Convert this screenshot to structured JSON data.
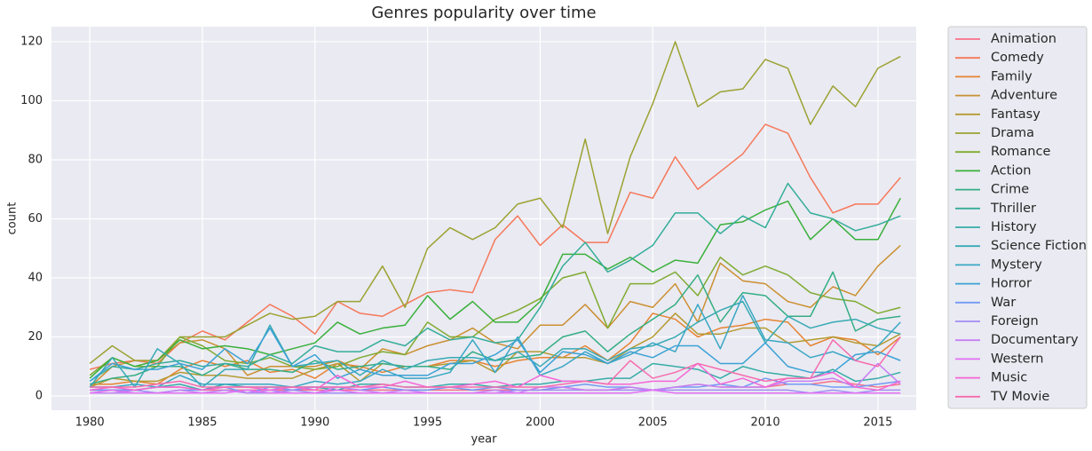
{
  "chart_data": {
    "type": "line",
    "title": "Genres popularity over time",
    "x_label": "year",
    "y_label": "count",
    "x": [
      1980,
      1981,
      1982,
      1983,
      1984,
      1985,
      1986,
      1987,
      1988,
      1989,
      1990,
      1991,
      1992,
      1993,
      1994,
      1995,
      1996,
      1997,
      1998,
      1999,
      2000,
      2001,
      2002,
      2003,
      2004,
      2005,
      2006,
      2007,
      2008,
      2009,
      2010,
      2011,
      2012,
      2013,
      2014,
      2015,
      2016
    ],
    "xlim": [
      1978.3,
      2016.7
    ],
    "xticks": [
      1980,
      1985,
      1990,
      1995,
      2000,
      2005,
      2010,
      2015
    ],
    "ylim": [
      -4.8,
      125.1
    ],
    "yticks": [
      0,
      20,
      40,
      60,
      80,
      100,
      120
    ],
    "grid": true,
    "legend": "right",
    "background": "#eaeaf2",
    "series": [
      {
        "name": "Animation",
        "color": "#f77189",
        "values": [
          2,
          2,
          2,
          3,
          3,
          2,
          2,
          2,
          2,
          2,
          2,
          2,
          2,
          2,
          2,
          2,
          2,
          2,
          2,
          2,
          2,
          3,
          2,
          2,
          3,
          2,
          3,
          4,
          3,
          3,
          3,
          4,
          4,
          5,
          4,
          3,
          4
        ]
      },
      {
        "name": "Comedy",
        "color": "#f5785a",
        "values": [
          9,
          11,
          12,
          11,
          18,
          22,
          19,
          25,
          31,
          27,
          21,
          32,
          28,
          27,
          31,
          35,
          36,
          35,
          53,
          61,
          51,
          58,
          52,
          52,
          69,
          67,
          81,
          70,
          76,
          82,
          92,
          89,
          74,
          62,
          65,
          65,
          74
        ]
      },
      {
        "name": "Family",
        "color": "#e68332",
        "values": [
          4,
          4,
          5,
          4,
          9,
          12,
          10,
          12,
          8,
          9,
          6,
          11,
          10,
          8,
          10,
          10,
          12,
          12,
          10,
          12,
          13,
          13,
          17,
          12,
          18,
          28,
          26,
          20,
          23,
          24,
          26,
          25,
          17,
          20,
          19,
          14,
          20
        ]
      },
      {
        "name": "Adventure",
        "color": "#cb9032",
        "values": [
          3,
          10,
          12,
          12,
          18,
          19,
          16,
          7,
          10,
          10,
          10,
          12,
          9,
          16,
          14,
          17,
          19,
          23,
          18,
          16,
          24,
          24,
          31,
          23,
          32,
          30,
          38,
          25,
          45,
          39,
          38,
          32,
          30,
          37,
          34,
          44,
          51
        ]
      },
      {
        "name": "Fantasy",
        "color": "#b59a32",
        "values": [
          3,
          6,
          5,
          5,
          8,
          7,
          7,
          6,
          6,
          6,
          9,
          11,
          5,
          11,
          10,
          10,
          11,
          12,
          8,
          15,
          15,
          13,
          13,
          11,
          16,
          20,
          28,
          21,
          21,
          23,
          23,
          18,
          19,
          20,
          18,
          17,
          21
        ]
      },
      {
        "name": "Drama",
        "color": "#9ba231",
        "values": [
          11,
          17,
          12,
          12,
          20,
          20,
          20,
          24,
          28,
          26,
          27,
          32,
          32,
          44,
          30,
          50,
          57,
          53,
          57,
          65,
          67,
          57,
          87,
          55,
          81,
          99,
          120,
          98,
          103,
          104,
          114,
          111,
          92,
          105,
          98,
          111,
          115
        ]
      },
      {
        "name": "Romance",
        "color": "#7fab31",
        "values": [
          7,
          13,
          10,
          10,
          20,
          17,
          12,
          11,
          13,
          10,
          9,
          10,
          13,
          15,
          14,
          25,
          20,
          20,
          26,
          29,
          33,
          40,
          42,
          23,
          38,
          38,
          42,
          34,
          47,
          41,
          44,
          41,
          35,
          33,
          32,
          28,
          30
        ]
      },
      {
        "name": "Action",
        "color": "#39b03c",
        "values": [
          6,
          13,
          10,
          12,
          19,
          16,
          17,
          16,
          14,
          16,
          18,
          25,
          21,
          23,
          24,
          34,
          26,
          32,
          25,
          25,
          32,
          48,
          48,
          43,
          47,
          42,
          46,
          45,
          58,
          59,
          63,
          66,
          53,
          60,
          53,
          53,
          67
        ]
      },
      {
        "name": "Crime",
        "color": "#34ae84",
        "values": [
          4,
          6,
          7,
          10,
          10,
          7,
          11,
          9,
          9,
          8,
          12,
          9,
          10,
          11,
          10,
          10,
          9,
          15,
          12,
          13,
          14,
          20,
          22,
          15,
          21,
          26,
          31,
          41,
          25,
          35,
          34,
          27,
          27,
          42,
          22,
          26,
          27
        ]
      },
      {
        "name": "Thriller",
        "color": "#35ad9a",
        "values": [
          5,
          10,
          9,
          11,
          12,
          10,
          11,
          10,
          14,
          11,
          17,
          15,
          15,
          19,
          17,
          23,
          19,
          20,
          18,
          19,
          30,
          44,
          52,
          42,
          46,
          51,
          62,
          62,
          55,
          61,
          57,
          72,
          62,
          60,
          56,
          58,
          61
        ]
      },
      {
        "name": "History",
        "color": "#36aca7",
        "values": [
          2,
          2,
          2,
          3,
          4,
          2,
          4,
          3,
          3,
          3,
          3,
          2,
          4,
          4,
          3,
          3,
          4,
          4,
          3,
          4,
          4,
          5,
          5,
          6,
          6,
          11,
          10,
          9,
          6,
          10,
          8,
          7,
          6,
          9,
          5,
          6,
          8
        ]
      },
      {
        "name": "Science Fiction",
        "color": "#37aab4",
        "values": [
          3,
          13,
          3,
          16,
          11,
          3,
          9,
          9,
          24,
          10,
          11,
          12,
          7,
          12,
          9,
          12,
          13,
          13,
          12,
          15,
          10,
          16,
          16,
          12,
          16,
          17,
          20,
          25,
          29,
          32,
          18,
          27,
          23,
          25,
          26,
          23,
          21
        ]
      },
      {
        "name": "Mystery",
        "color": "#39a7c4",
        "values": [
          3,
          3,
          4,
          3,
          7,
          4,
          4,
          4,
          4,
          3,
          5,
          4,
          5,
          9,
          6,
          6,
          8,
          19,
          8,
          20,
          7,
          10,
          15,
          11,
          14,
          18,
          15,
          31,
          16,
          34,
          19,
          18,
          13,
          15,
          12,
          17,
          25
        ]
      },
      {
        "name": "Horror",
        "color": "#3ba2d5",
        "values": [
          5,
          11,
          9,
          9,
          11,
          9,
          16,
          11,
          23,
          10,
          14,
          6,
          9,
          7,
          7,
          7,
          11,
          11,
          14,
          19,
          8,
          15,
          14,
          11,
          15,
          13,
          17,
          17,
          11,
          11,
          18,
          10,
          8,
          8,
          14,
          15,
          12
        ]
      },
      {
        "name": "War",
        "color": "#7199f4",
        "values": [
          2,
          2,
          2,
          1,
          2,
          2,
          3,
          1,
          3,
          2,
          3,
          3,
          2,
          3,
          2,
          2,
          3,
          2,
          3,
          2,
          2,
          3,
          4,
          3,
          3,
          2,
          3,
          3,
          4,
          3,
          6,
          4,
          4,
          3,
          3,
          4,
          5
        ]
      },
      {
        "name": "Foreign",
        "color": "#a28cf4",
        "values": [
          1,
          1,
          2,
          1,
          1,
          1,
          2,
          1,
          1,
          2,
          1,
          1,
          1,
          1,
          1,
          1,
          1,
          1,
          1,
          2,
          2,
          2,
          2,
          2,
          2,
          2,
          2,
          2,
          2,
          2,
          2,
          2,
          1,
          2,
          1,
          2,
          2
        ]
      },
      {
        "name": "Documentary",
        "color": "#c67ff4",
        "values": [
          1,
          1,
          1,
          1,
          2,
          1,
          2,
          1,
          2,
          1,
          1,
          3,
          2,
          1,
          2,
          1,
          1,
          1,
          2,
          1,
          3,
          3,
          2,
          2,
          3,
          2,
          3,
          4,
          3,
          3,
          3,
          5,
          5,
          6,
          3,
          11,
          4
        ]
      },
      {
        "name": "Western",
        "color": "#e36ef4",
        "values": [
          1,
          2,
          1,
          1,
          1,
          1,
          1,
          2,
          1,
          1,
          1,
          2,
          1,
          1,
          1,
          1,
          1,
          1,
          1,
          1,
          1,
          1,
          1,
          1,
          1,
          2,
          1,
          1,
          1,
          1,
          1,
          1,
          1,
          1,
          1,
          1,
          1
        ]
      },
      {
        "name": "Music",
        "color": "#f565d6",
        "values": [
          2,
          3,
          2,
          3,
          3,
          2,
          3,
          3,
          2,
          3,
          2,
          7,
          3,
          3,
          5,
          3,
          3,
          4,
          5,
          3,
          7,
          5,
          5,
          4,
          4,
          5,
          5,
          11,
          4,
          6,
          3,
          6,
          6,
          8,
          3,
          2,
          5
        ]
      },
      {
        "name": "TV Movie",
        "color": "#f66bad",
        "values": [
          3,
          3,
          3,
          4,
          5,
          3,
          3,
          3,
          3,
          3,
          3,
          3,
          3,
          4,
          3,
          3,
          3,
          3,
          3,
          3,
          3,
          4,
          5,
          4,
          12,
          6,
          8,
          11,
          9,
          7,
          5,
          6,
          6,
          19,
          12,
          10,
          20
        ]
      }
    ]
  }
}
